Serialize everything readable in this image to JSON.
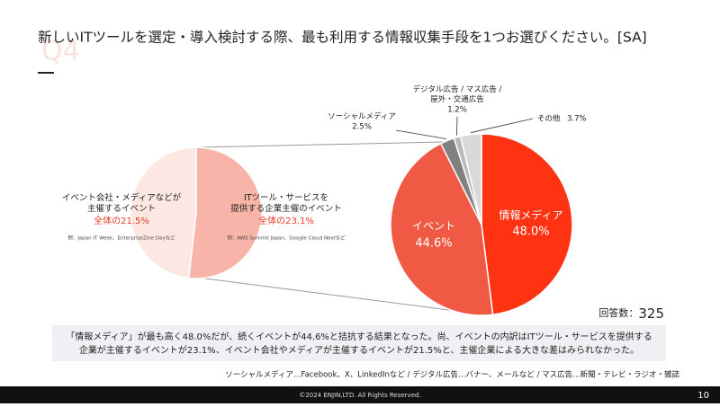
{
  "header": {
    "title": "新しいITツールを選定・導入検討する際、最も利用する情報収集手段を1つお選びください。[SA]",
    "question_no": "Q4"
  },
  "chart_data": [
    {
      "type": "pie",
      "categories": [
        "情報メディア",
        "イベント",
        "ソーシャルメディア",
        "デジタル広告 / マス広告 /\n屋外・交通広告",
        "その他"
      ],
      "values": [
        48.0,
        44.6,
        2.5,
        1.2,
        3.7
      ],
      "value_labels": [
        "48.0%",
        "44.6%",
        "2.5%",
        "1.2%",
        "3.7%"
      ],
      "colors": [
        "#ff3311",
        "#f05a44",
        "#808080",
        "#b9b9b9",
        "#d9d9d9"
      ]
    },
    {
      "type": "pie",
      "categories": [
        "イベント会社・メディアなどが\n主催するイベント",
        "ITツール・サービスを\n提供する企業主催のイベント"
      ],
      "values": [
        21.5,
        23.1
      ],
      "value_labels": [
        "全体の21.5%",
        "全体の23.1%"
      ],
      "notes": [
        "例：Japan IT Week、EnterpriseZine Dayなど",
        "例：AWS Summit Japan、Google Cloud Nextなど"
      ],
      "colors": [
        "#fde7e2",
        "#f8b4a8"
      ]
    }
  ],
  "respondents": {
    "label": "回答数：",
    "value": 325
  },
  "summary": "「情報メディア」が最も高く48.0%だが、続くイベントが44.6%と拮抗する結果となった。尚、イベントの内訳はITツール・サービスを提供する\n企業が主催するイベントが23.1%、イベント会社やメディアが主催するイベントが21.5%と、主催企業による大きな差はみられなかった。",
  "footnote": "ソーシャルメディア…Facebook、X、LinkedInなど / デジタル広告…バナー、メールなど / マス広告…新聞・テレビ・ラジオ・雑誌",
  "footer": {
    "copyright": "©2024 ENJIN,LTD. All Rights Reserved.",
    "page": 10
  }
}
